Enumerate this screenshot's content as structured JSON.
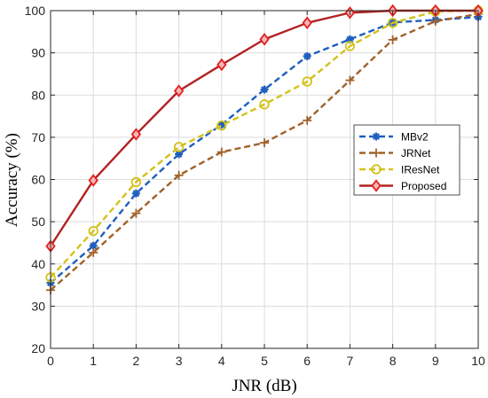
{
  "chart_data": {
    "type": "line",
    "title": "",
    "xlabel": "JNR (dB)",
    "ylabel": "Accuracy (%)",
    "xlim": [
      0,
      10
    ],
    "ylim": [
      20,
      100
    ],
    "xticks": [
      0,
      1,
      2,
      3,
      4,
      5,
      6,
      7,
      8,
      9,
      10
    ],
    "yticks": [
      20,
      30,
      40,
      50,
      60,
      70,
      80,
      90,
      100
    ],
    "grid": true,
    "legend_position": "right",
    "x": [
      0,
      1,
      2,
      3,
      4,
      5,
      6,
      7,
      8,
      9,
      10
    ],
    "series": [
      {
        "name": "MBv2",
        "values": [
          35.5,
          44.3,
          56.7,
          66.0,
          73.0,
          81.3,
          89.2,
          93.2,
          97.2,
          97.8,
          98.5
        ],
        "color": "#1f5fbf",
        "dash": "dashed",
        "marker": "asterisk"
      },
      {
        "name": "JRNet",
        "values": [
          33.8,
          42.7,
          52.0,
          61.0,
          66.5,
          68.7,
          74.0,
          83.5,
          93.1,
          97.5,
          99.2
        ],
        "color": "#a0622a",
        "dash": "dashed",
        "marker": "plus"
      },
      {
        "name": "IResNet",
        "values": [
          36.8,
          47.8,
          59.4,
          67.7,
          72.8,
          77.8,
          83.2,
          91.6,
          97.1,
          99.8,
          100.0
        ],
        "color": "#d4c21a",
        "dash": "dashed",
        "marker": "circle"
      },
      {
        "name": "Proposed",
        "values": [
          44.2,
          59.8,
          70.7,
          81.0,
          87.2,
          93.2,
          97.1,
          99.5,
          100.0,
          100.0,
          100.0
        ],
        "color": "#b22222",
        "dash": "solid",
        "marker": "diamond"
      }
    ]
  }
}
